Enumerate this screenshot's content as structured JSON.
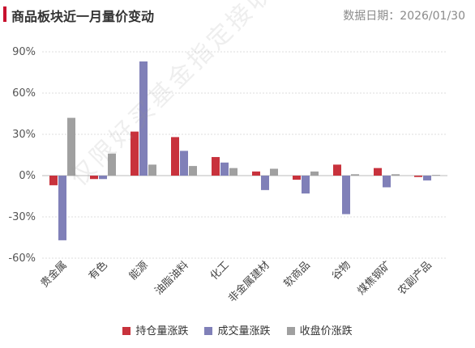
{
  "header": {
    "title": "商品板块近一月量价变动",
    "date_text": "数据日期：2026/01/30"
  },
  "watermark": "仅限好买基金指定接收人使用",
  "legend": {
    "items": [
      {
        "label": "持仓量涨跌",
        "color": "#c8323c"
      },
      {
        "label": "成交量涨跌",
        "color": "#8080b8"
      },
      {
        "label": "收盘价涨跌",
        "color": "#a0a0a0"
      }
    ]
  },
  "chart_data": {
    "type": "bar",
    "categories": [
      "贵金属",
      "有色",
      "能源",
      "油脂油料",
      "化工",
      "非金属建材",
      "软商品",
      "谷物",
      "煤焦钢矿",
      "农副产品"
    ],
    "series": [
      {
        "name": "持仓量涨跌",
        "color": "#c8323c",
        "values": [
          -7,
          -2.5,
          32,
          28,
          13.5,
          3,
          -3,
          8,
          5.5,
          -1
        ]
      },
      {
        "name": "成交量涨跌",
        "color": "#8080b8",
        "values": [
          -47,
          -2.5,
          83,
          18,
          9.5,
          -10.5,
          -13,
          -28,
          -8.5,
          -3.5
        ]
      },
      {
        "name": "收盘价涨跌",
        "color": "#a0a0a0",
        "values": [
          42,
          16,
          8,
          7,
          5.5,
          5,
          3,
          1,
          1,
          0.5
        ]
      }
    ],
    "yticks": [
      "90%",
      "60%",
      "30%",
      "0%",
      "-30%",
      "-60%"
    ],
    "ytick_values": [
      90,
      60,
      30,
      0,
      -30,
      -60
    ],
    "ylim": [
      -60,
      90
    ],
    "grid": true,
    "legend_position": "bottom"
  }
}
